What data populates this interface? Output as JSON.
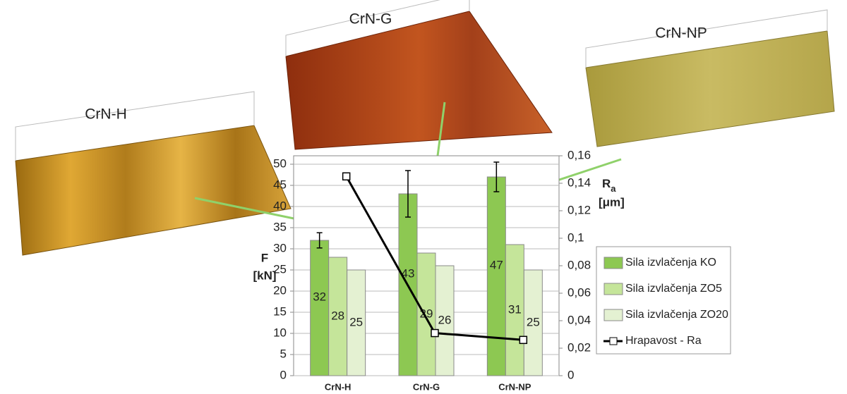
{
  "chart_data": {
    "type": "bar",
    "categories": [
      "CrN-H",
      "CrN-G",
      "CrN-NP"
    ],
    "series": [
      {
        "name": "Sila izvlačenja KO",
        "color": "#8dc852",
        "values": [
          32,
          43,
          47
        ],
        "errors": [
          1.8,
          5.5,
          3.5
        ]
      },
      {
        "name": "Sila izvlačenja ZO5",
        "color": "#c5e59a",
        "values": [
          28,
          29,
          31
        ]
      },
      {
        "name": "Sila izvlačenja ZO20",
        "color": "#e4f1d2",
        "values": [
          25,
          26,
          25
        ]
      },
      {
        "name": "Hrapavost - Ra",
        "color": "#000000",
        "type": "line",
        "axis": "y2",
        "values": [
          0.145,
          0.031,
          0.026
        ]
      }
    ],
    "ylabel": [
      "F",
      "[kN]"
    ],
    "y2label": {
      "main": "R",
      "sub": "a",
      "unit": "[μm]"
    },
    "ylim": [
      0,
      52
    ],
    "yticks": [
      0,
      5,
      10,
      15,
      20,
      25,
      30,
      35,
      40,
      45,
      50
    ],
    "y2lim": [
      0,
      0.16
    ],
    "y2ticks": [
      0,
      {
        "value": 0.02,
        "label": "0,02"
      },
      {
        "value": 0.04,
        "label": "0,04"
      },
      {
        "value": 0.06,
        "label": "0,06"
      },
      {
        "value": 0.08,
        "label": "0,08"
      },
      {
        "value": 0.1,
        "label": "0,1"
      },
      {
        "value": 0.12,
        "label": "0,12"
      },
      {
        "value": 0.14,
        "label": "0,14"
      },
      {
        "value": 0.16,
        "label": "0,16"
      }
    ],
    "grid": true,
    "legend": "right",
    "images": [
      "CrN-H",
      "CrN-G",
      "CrN-NP"
    ]
  }
}
